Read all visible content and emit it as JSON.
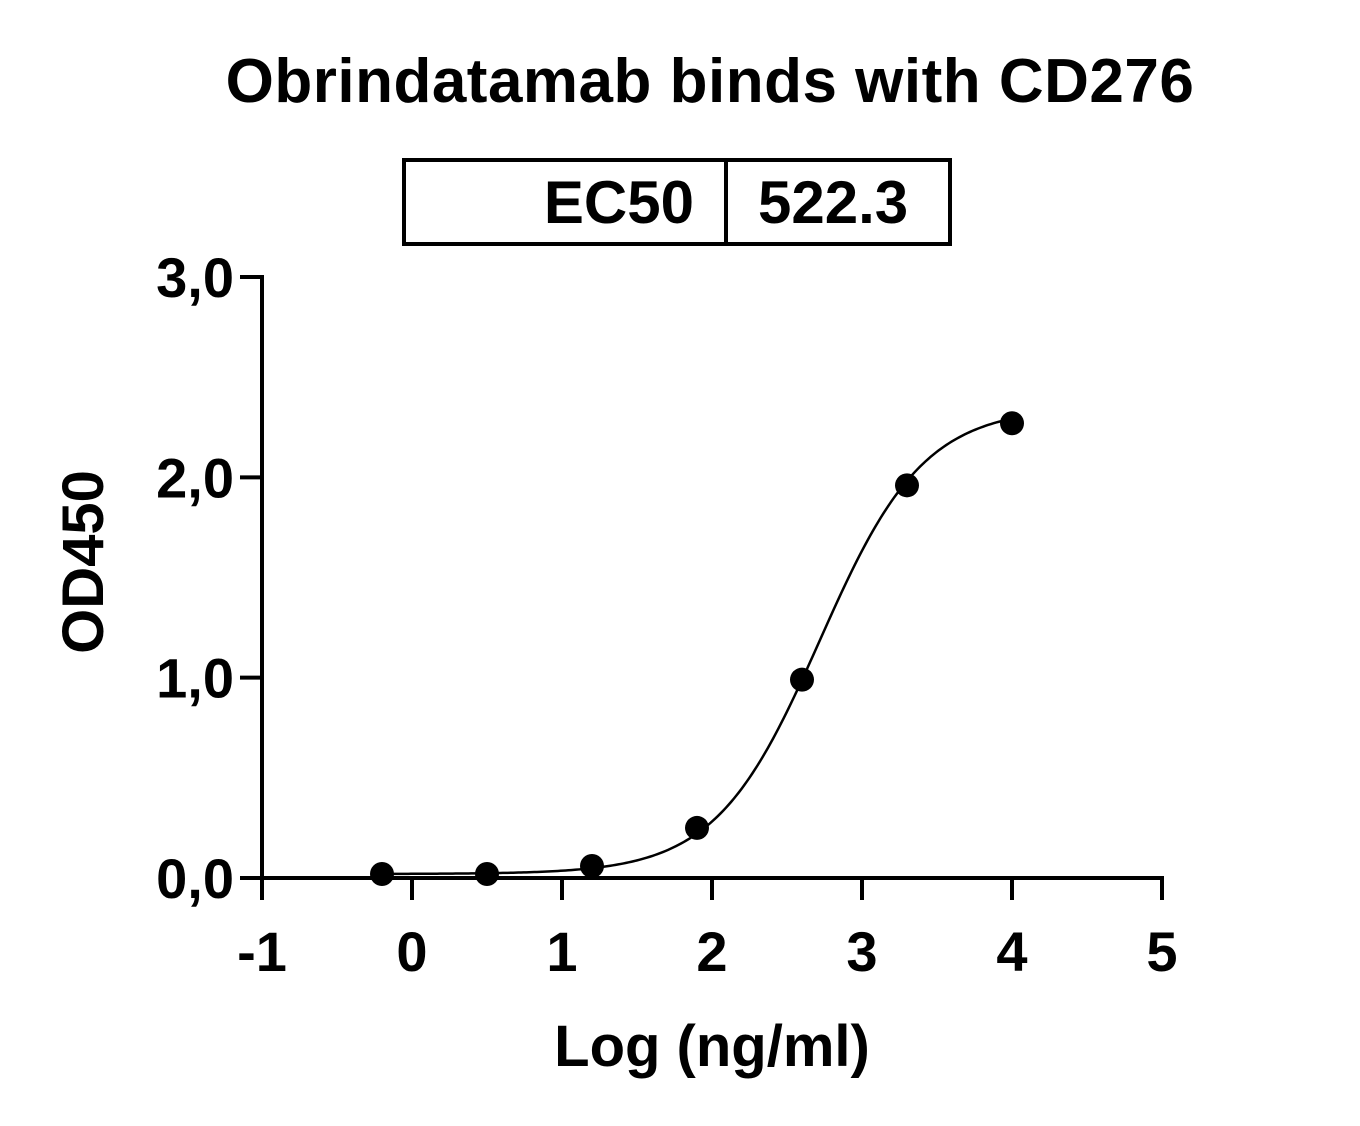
{
  "chart_data": {
    "type": "scatter",
    "title": "Obrindatamab binds with CD276",
    "xlabel": "Log (ng/ml)",
    "ylabel": "OD450",
    "xlim": [
      -1,
      5
    ],
    "ylim": [
      0,
      3
    ],
    "x_ticks": [
      "-1",
      "0",
      "1",
      "2",
      "3",
      "4",
      "5"
    ],
    "y_ticks": [
      "0,0",
      "1,0",
      "2,0",
      "3,0"
    ],
    "grid": false,
    "table": {
      "label": "EC50",
      "value": "522.3"
    },
    "series": [
      {
        "points": [
          {
            "x": -0.2,
            "y": 0.02
          },
          {
            "x": 0.5,
            "y": 0.02
          },
          {
            "x": 1.2,
            "y": 0.06
          },
          {
            "x": 1.9,
            "y": 0.25
          },
          {
            "x": 2.6,
            "y": 0.99
          },
          {
            "x": 3.3,
            "y": 1.96
          },
          {
            "x": 4.0,
            "y": 2.27
          }
        ],
        "fit": {
          "model": "4PL",
          "bottom": 0.02,
          "top": 2.35,
          "log_ec50": 2.718,
          "hill": 1.25
        }
      }
    ],
    "colors": {
      "marker": "#000000",
      "line": "#000000"
    }
  }
}
